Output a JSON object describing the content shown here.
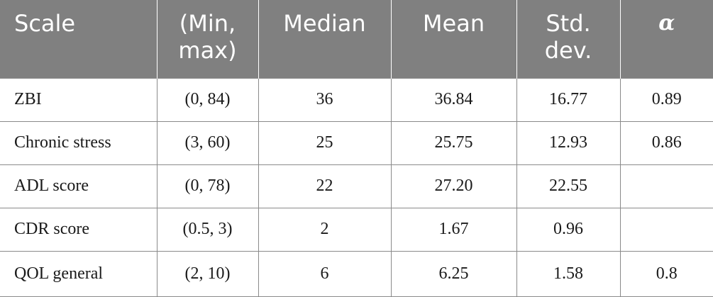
{
  "table": {
    "headers": {
      "scale": "Scale",
      "minmax_line1": "(Min,",
      "minmax_line2": "max)",
      "median": "Median",
      "mean": "Mean",
      "stddev_line1": "Std.",
      "stddev_line2": "dev.",
      "alpha": "α"
    },
    "rows": [
      {
        "scale": "ZBI",
        "range": "(0, 84)",
        "median": "36",
        "mean": "36.84",
        "sd": "16.77",
        "alpha": "0.89"
      },
      {
        "scale": "Chronic stress",
        "range": "(3, 60)",
        "median": "25",
        "mean": "25.75",
        "sd": "12.93",
        "alpha": "0.86"
      },
      {
        "scale": "ADL score",
        "range": "(0, 78)",
        "median": "22",
        "mean": "27.20",
        "sd": "22.55",
        "alpha": ""
      },
      {
        "scale": "CDR score",
        "range": "(0.5, 3)",
        "median": "2",
        "mean": "1.67",
        "sd": "0.96",
        "alpha": ""
      },
      {
        "scale": "QOL general",
        "range": "(2, 10)",
        "median": "6",
        "mean": "6.25",
        "sd": "1.58",
        "alpha": "0.8"
      }
    ]
  },
  "colors": {
    "header_bg": "#808080",
    "header_text": "#ffffff",
    "border": "#8a8a8a",
    "body_text": "#1a1a1a"
  }
}
